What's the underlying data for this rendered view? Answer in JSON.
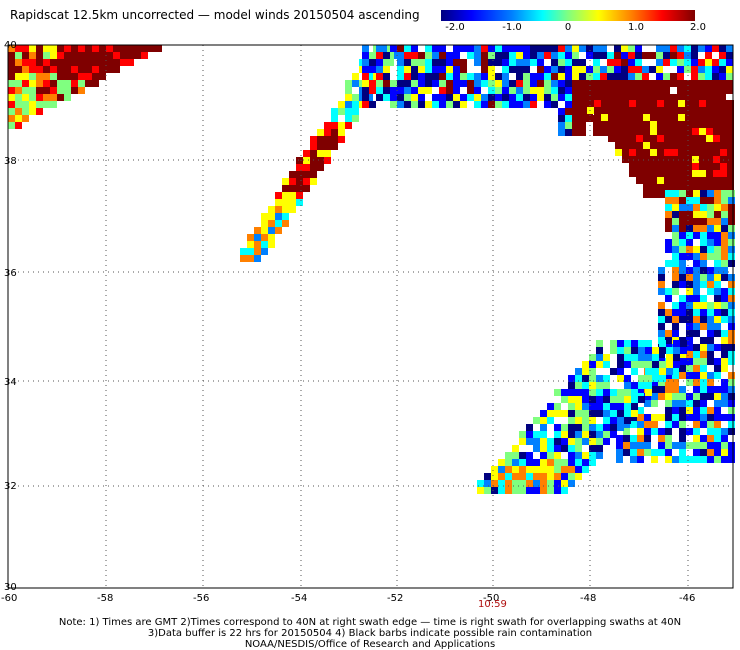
{
  "title": "Rapidscat 12.5km uncorrected — model winds 20150504 ascending",
  "colorbar": {
    "ticks": [
      "-2.0",
      "-1.0",
      "0",
      "1.0",
      "2.0"
    ],
    "colors": [
      "#00007f",
      "#0000ff",
      "#0080ff",
      "#00ffff",
      "#80ff80",
      "#ffff00",
      "#ff8000",
      "#ff0000",
      "#7f0000"
    ]
  },
  "map": {
    "lon_ticks": [
      "-60",
      "-58",
      "-56",
      "-54",
      "-52",
      "-50",
      "-48",
      "-46"
    ],
    "lat_ticks": [
      "40",
      "38",
      "36",
      "34",
      "32",
      "30"
    ],
    "lon_range": [
      -60,
      -45
    ],
    "lat_range": [
      30,
      40
    ]
  },
  "time_label": "10:59",
  "footer": {
    "line1": "Note: 1) Times are GMT 2)Times correspond to 40N at right swath edge — time is right swath for overlapping swaths at 40N",
    "line2": "3)Data buffer is 22 hrs for 20150504 4) Black barbs indicate possible rain contamination",
    "line3": "NOAA/NESDIS/Office of Research and Applications"
  }
}
